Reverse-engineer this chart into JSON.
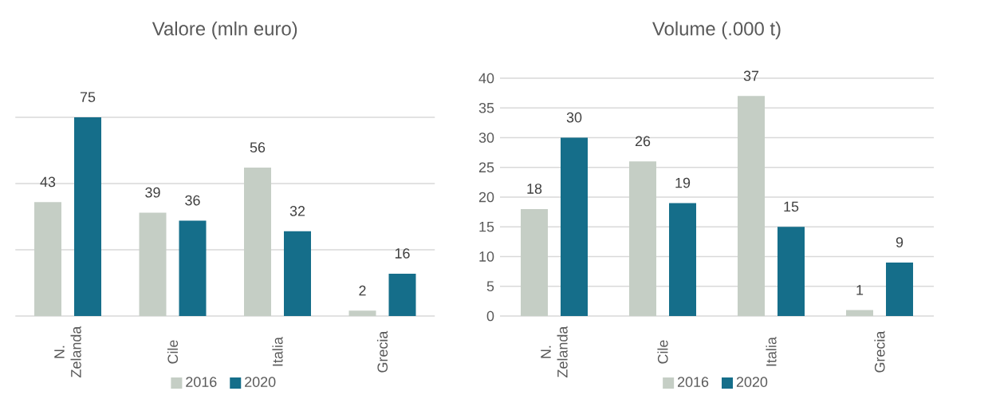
{
  "chart_data": [
    {
      "type": "bar",
      "title": "Valore (mln euro)",
      "categories": [
        "N. Zelanda",
        "Cile",
        "Italia",
        "Grecia"
      ],
      "series": [
        {
          "name": "2016",
          "color": "#c5cec5",
          "values": [
            43,
            39,
            56,
            2
          ]
        },
        {
          "name": "2020",
          "color": "#156e8a",
          "values": [
            75,
            36,
            32,
            16
          ]
        }
      ],
      "data_labels": true,
      "grid": "y",
      "legend": "bottom",
      "ylim": [
        0,
        75
      ],
      "yticks": [
        {
          "value": 0,
          "label": null
        },
        {
          "value": 25,
          "label": null
        },
        {
          "value": 50,
          "label": null
        },
        {
          "value": 75,
          "label": null
        }
      ],
      "tick_labels": "x"
    },
    {
      "type": "bar",
      "title": "Volume (.000 t)",
      "categories": [
        "N. Zelanda",
        "Cile",
        "Italia",
        "Grecia"
      ],
      "series": [
        {
          "name": "2016",
          "color": "#c5cec5",
          "values": [
            18,
            26,
            37,
            1
          ]
        },
        {
          "name": "2020",
          "color": "#156e8a",
          "values": [
            30,
            19,
            15,
            9
          ]
        }
      ],
      "data_labels": true,
      "grid": "y",
      "legend": "bottom",
      "ylim": [
        0,
        40
      ],
      "yticks": [
        0,
        5,
        10,
        15,
        20,
        25,
        30,
        35,
        40
      ]
    }
  ]
}
